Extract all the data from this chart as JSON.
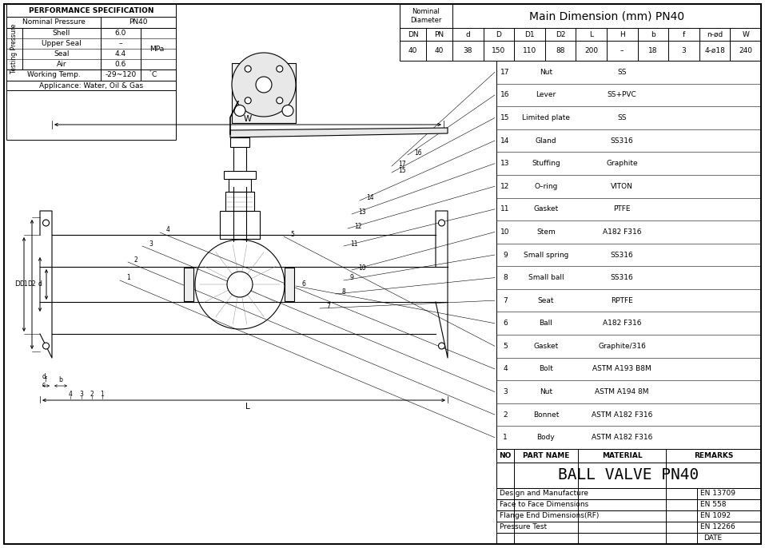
{
  "bg_color": "#ffffff",
  "title": "BALL VALVE PN40",
  "perf_spec": {
    "header": "PERFORMANCE SPECIFICATION",
    "nominal_pressure_label": "Nominal Pressure",
    "nominal_pressure_val": "PN40",
    "testing_label": "Testing Pressure",
    "rows": [
      {
        "label": "Shell",
        "val": "6.0"
      },
      {
        "label": "Upper Seal",
        "val": "–"
      },
      {
        "label": "Seal",
        "val": "4.4"
      },
      {
        "label": "Air",
        "val": "0.6"
      }
    ],
    "unit": "MPa",
    "working_temp_label": "Working Temp.",
    "working_temp_val": "-29~120",
    "working_temp_unit": "°",
    "applicance": "Applicance: Water, Oil & Gas"
  },
  "main_dim": {
    "header": "Main Dimension (mm) PN40",
    "nom_dia_line1": "Nominal",
    "nom_dia_line2": "Diameter",
    "col_headers": [
      "DN",
      "PN",
      "d",
      "D",
      "D1",
      "D2",
      "L",
      "H",
      "b",
      "f",
      "n-ød",
      "W"
    ],
    "data_row": [
      "40",
      "40",
      "38",
      "150",
      "110",
      "88",
      "200",
      "–",
      "18",
      "3",
      "4-ø18",
      "240"
    ]
  },
  "bom": [
    {
      "no": "17",
      "part": "Nut",
      "material": "SS"
    },
    {
      "no": "16",
      "part": "Lever",
      "material": "SS+PVC"
    },
    {
      "no": "15",
      "part": "Limited plate",
      "material": "SS"
    },
    {
      "no": "14",
      "part": "Gland",
      "material": "SS316"
    },
    {
      "no": "13",
      "part": "Stuffing",
      "material": "Graphite"
    },
    {
      "no": "12",
      "part": "O–ring",
      "material": "VITON"
    },
    {
      "no": "11",
      "part": "Gasket",
      "material": "PTFE"
    },
    {
      "no": "10",
      "part": "Stem",
      "material": "A182 F316"
    },
    {
      "no": "9",
      "part": "Small spring",
      "material": "SS316"
    },
    {
      "no": "8",
      "part": "Small ball",
      "material": "SS316"
    },
    {
      "no": "7",
      "part": "Seat",
      "material": "RPTFE"
    },
    {
      "no": "6",
      "part": "Ball",
      "material": "A182 F316"
    },
    {
      "no": "5",
      "part": "Gasket",
      "material": "Graphite/316"
    },
    {
      "no": "4",
      "part": "Bolt",
      "material": "ASTM A193 B8M"
    },
    {
      "no": "3",
      "part": "Nut",
      "material": "ASTM A194 8M"
    },
    {
      "no": "2",
      "part": "Bonnet",
      "material": "ASTM A182 F316"
    },
    {
      "no": "1",
      "part": "Body",
      "material": "ASTM A182 F316"
    }
  ],
  "bom_header": [
    "NO",
    "PART NAME",
    "MATERIAL",
    "REMARKS"
  ],
  "standards": [
    {
      "label": "Design and Manufacture",
      "val": "EN 13709"
    },
    {
      "label": "Face to Face Dimensions",
      "val": "EN 558"
    },
    {
      "label": "Flange End Dimensions(RF)",
      "val": "EN 1092"
    },
    {
      "label": "Pressure Test",
      "val": "EN 12266"
    }
  ],
  "date_label": "DATE"
}
